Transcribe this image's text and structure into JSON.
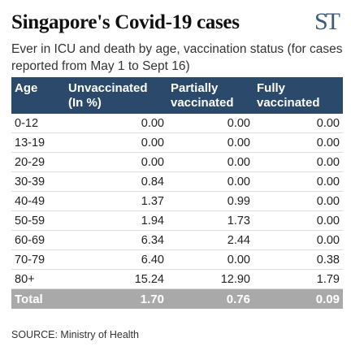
{
  "header": {
    "title": "Singapore's Covid-19 cases",
    "logo": "ST",
    "subtitle": "Ever in ICU and death by age, vaccination status (for cases reported from May 1 to Sept 16)"
  },
  "table": {
    "columns": [
      "Age",
      "Unvaccinated (In %)",
      "Partially vaccinated",
      "Fully vaccinated"
    ],
    "rows": [
      [
        "0-12",
        "0.00",
        "0.00",
        "0.00"
      ],
      [
        "13-19",
        "0.00",
        "0.00",
        "0.00"
      ],
      [
        "20-29",
        "0.00",
        "0.00",
        "0.00"
      ],
      [
        "30-39",
        "0.84",
        "0.00",
        "0.00"
      ],
      [
        "40-49",
        "1.37",
        "0.99",
        "0.00"
      ],
      [
        "50-59",
        "1.94",
        "1.73",
        "0.00"
      ],
      [
        "60-69",
        "6.34",
        "2.44",
        "0.00"
      ],
      [
        "70-79",
        "6.40",
        "0.00",
        "0.38"
      ],
      [
        "80+",
        "15.24",
        "12.90",
        "1.79"
      ]
    ],
    "total": [
      "Total",
      "1.70",
      "0.76",
      "0.09"
    ]
  },
  "source": "SOURCE: Ministry of Health",
  "colors": {
    "header_bg": "#2b4a6b",
    "total_bg": "#a9a9a9",
    "logo": "#3d5a78"
  }
}
